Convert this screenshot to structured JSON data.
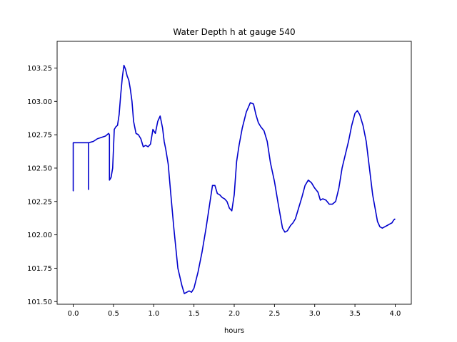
{
  "chart_data": {
    "type": "line",
    "title": "Water Depth h at gauge 540",
    "xlabel": "hours",
    "ylabel": "",
    "xlim": [
      -0.2,
      4.2
    ],
    "ylim": [
      101.48,
      103.45
    ],
    "xticks": [
      0.0,
      0.5,
      1.0,
      1.5,
      2.0,
      2.5,
      3.0,
      3.5,
      4.0
    ],
    "xtick_labels": [
      "0.0",
      "0.5",
      "1.0",
      "1.5",
      "2.0",
      "2.5",
      "3.0",
      "3.5",
      "4.0"
    ],
    "yticks": [
      101.5,
      101.75,
      102.0,
      102.25,
      102.5,
      102.75,
      103.0,
      103.25
    ],
    "ytick_labels": [
      "101.50",
      "101.75",
      "102.00",
      "102.25",
      "102.50",
      "102.75",
      "103.00",
      "103.25"
    ],
    "grid": false,
    "line_color": "#0000cc",
    "series": [
      {
        "x": [
          0.0,
          0.0,
          0.0,
          0.0,
          0.19,
          0.19,
          0.19,
          0.19,
          0.25,
          0.3,
          0.35,
          0.4,
          0.44,
          0.45,
          0.45,
          0.47,
          0.49,
          0.51,
          0.53,
          0.55,
          0.57,
          0.59,
          0.61,
          0.63,
          0.65,
          0.67,
          0.69,
          0.71,
          0.73,
          0.75,
          0.78,
          0.81,
          0.84,
          0.87,
          0.9,
          0.93,
          0.96,
          0.99,
          1.02,
          1.05,
          1.08,
          1.11,
          1.13,
          1.15,
          1.18,
          1.21,
          1.25,
          1.3,
          1.35,
          1.38,
          1.41,
          1.44,
          1.47,
          1.5,
          1.55,
          1.6,
          1.65,
          1.7,
          1.73,
          1.76,
          1.79,
          1.82,
          1.85,
          1.88,
          1.91,
          1.94,
          1.97,
          2.0,
          2.03,
          2.06,
          2.1,
          2.15,
          2.2,
          2.24,
          2.27,
          2.3,
          2.33,
          2.37,
          2.41,
          2.45,
          2.5,
          2.55,
          2.6,
          2.63,
          2.66,
          2.7,
          2.73,
          2.76,
          2.8,
          2.84,
          2.88,
          2.92,
          2.96,
          3.0,
          3.04,
          3.07,
          3.1,
          3.14,
          3.18,
          3.22,
          3.26,
          3.3,
          3.34,
          3.38,
          3.42,
          3.46,
          3.5,
          3.53,
          3.56,
          3.6,
          3.64,
          3.68,
          3.72,
          3.75,
          3.78,
          3.81,
          3.84,
          3.87,
          3.9,
          3.93,
          3.96,
          3.98,
          4.0
        ],
        "y": [
          102.69,
          102.33,
          102.69,
          102.69,
          102.69,
          102.34,
          102.69,
          102.69,
          102.7,
          102.72,
          102.73,
          102.74,
          102.76,
          102.75,
          102.41,
          102.43,
          102.5,
          102.79,
          102.81,
          102.82,
          102.9,
          103.05,
          103.18,
          103.27,
          103.24,
          103.19,
          103.16,
          103.09,
          103.0,
          102.85,
          102.76,
          102.75,
          102.72,
          102.66,
          102.67,
          102.66,
          102.68,
          102.79,
          102.76,
          102.85,
          102.89,
          102.8,
          102.7,
          102.64,
          102.53,
          102.32,
          102.05,
          101.75,
          101.62,
          101.56,
          101.57,
          101.58,
          101.57,
          101.6,
          101.72,
          101.87,
          102.05,
          102.25,
          102.37,
          102.37,
          102.31,
          102.3,
          102.28,
          102.27,
          102.25,
          102.2,
          102.18,
          102.3,
          102.55,
          102.67,
          102.8,
          102.92,
          102.99,
          102.98,
          102.9,
          102.84,
          102.81,
          102.78,
          102.7,
          102.54,
          102.4,
          102.22,
          102.05,
          102.02,
          102.03,
          102.07,
          102.09,
          102.12,
          102.2,
          102.28,
          102.37,
          102.41,
          102.39,
          102.35,
          102.32,
          102.26,
          102.27,
          102.26,
          102.23,
          102.23,
          102.25,
          102.35,
          102.5,
          102.6,
          102.7,
          102.82,
          102.91,
          102.93,
          102.9,
          102.82,
          102.7,
          102.5,
          102.3,
          102.2,
          102.1,
          102.06,
          102.05,
          102.06,
          102.07,
          102.08,
          102.09,
          102.11,
          102.12
        ]
      }
    ]
  }
}
